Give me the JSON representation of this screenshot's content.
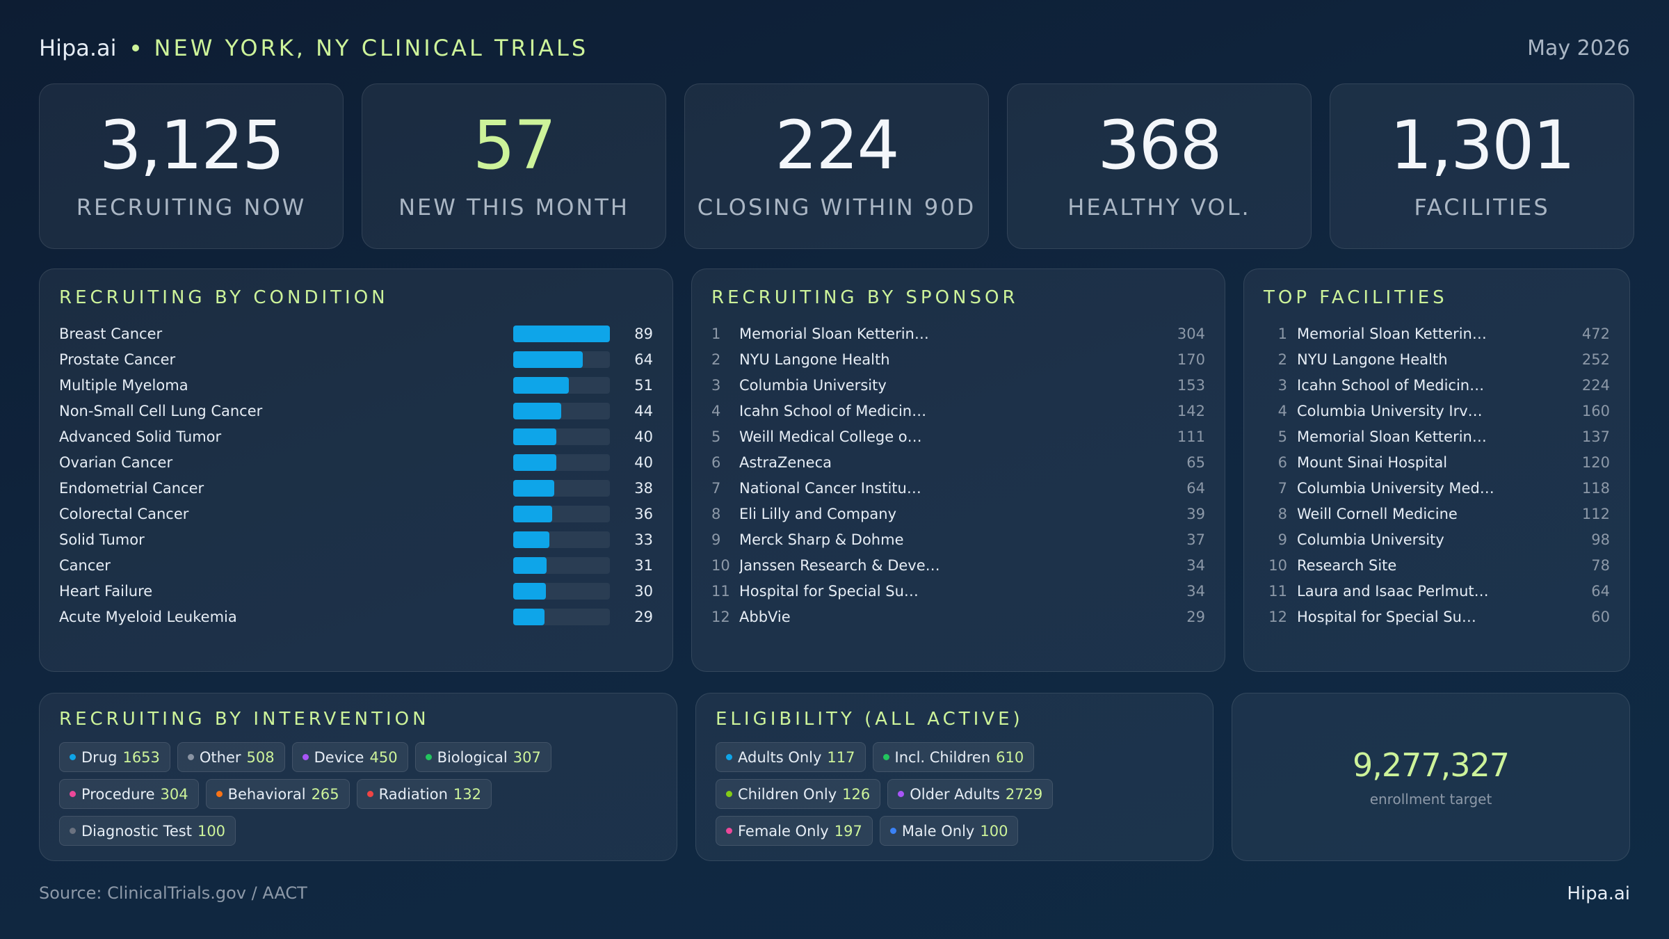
{
  "header": {
    "brand": "Hipa.ai",
    "title": "NEW YORK, NY CLINICAL TRIALS",
    "date": "May 2026"
  },
  "kpis": [
    {
      "value": "3,125",
      "label": "RECRUITING NOW"
    },
    {
      "value": "57",
      "label": "NEW THIS MONTH",
      "accent": true
    },
    {
      "value": "224",
      "label": "CLOSING WITHIN 90D"
    },
    {
      "value": "368",
      "label": "HEALTHY VOL."
    },
    {
      "value": "1,301",
      "label": "FACILITIES"
    }
  ],
  "conditions": {
    "title": "RECRUITING BY CONDITION",
    "bar_color": "#0ea5e9",
    "items": [
      {
        "name": "Breast Cancer",
        "value": 89
      },
      {
        "name": "Prostate Cancer",
        "value": 64
      },
      {
        "name": "Multiple Myeloma",
        "value": 51
      },
      {
        "name": "Non-Small Cell Lung Cancer",
        "value": 44
      },
      {
        "name": "Advanced Solid Tumor",
        "value": 40
      },
      {
        "name": "Ovarian Cancer",
        "value": 40
      },
      {
        "name": "Endometrial Cancer",
        "value": 38
      },
      {
        "name": "Colorectal Cancer",
        "value": 36
      },
      {
        "name": "Solid Tumor",
        "value": 33
      },
      {
        "name": "Cancer",
        "value": 31
      },
      {
        "name": "Heart Failure",
        "value": 30
      },
      {
        "name": "Acute Myeloid Leukemia",
        "value": 29
      }
    ]
  },
  "sponsors": {
    "title": "RECRUITING BY SPONSOR",
    "items": [
      {
        "rank": 1,
        "name": "Memorial Sloan Ketterin…",
        "count": 304
      },
      {
        "rank": 2,
        "name": "NYU Langone Health",
        "count": 170
      },
      {
        "rank": 3,
        "name": "Columbia University",
        "count": 153
      },
      {
        "rank": 4,
        "name": "Icahn School of Medicin…",
        "count": 142
      },
      {
        "rank": 5,
        "name": "Weill Medical College o…",
        "count": 111
      },
      {
        "rank": 6,
        "name": "AstraZeneca",
        "count": 65
      },
      {
        "rank": 7,
        "name": "National Cancer Institu…",
        "count": 64
      },
      {
        "rank": 8,
        "name": "Eli Lilly and Company",
        "count": 39
      },
      {
        "rank": 9,
        "name": "Merck Sharp & Dohme",
        "count": 37
      },
      {
        "rank": 10,
        "name": "Janssen Research & Deve…",
        "count": 34
      },
      {
        "rank": 11,
        "name": "Hospital for Special Su…",
        "count": 34
      },
      {
        "rank": 12,
        "name": "AbbVie",
        "count": 29
      }
    ]
  },
  "facilities": {
    "title": "TOP FACILITIES",
    "items": [
      {
        "rank": 1,
        "name": "Memorial Sloan Ketterin…",
        "count": 472
      },
      {
        "rank": 2,
        "name": "NYU Langone Health",
        "count": 252
      },
      {
        "rank": 3,
        "name": "Icahn School of Medicin…",
        "count": 224
      },
      {
        "rank": 4,
        "name": "Columbia University Irv…",
        "count": 160
      },
      {
        "rank": 5,
        "name": "Memorial Sloan Ketterin…",
        "count": 137
      },
      {
        "rank": 6,
        "name": "Mount Sinai Hospital",
        "count": 120
      },
      {
        "rank": 7,
        "name": "Columbia University Med…",
        "count": 118
      },
      {
        "rank": 8,
        "name": "Weill Cornell Medicine",
        "count": 112
      },
      {
        "rank": 9,
        "name": "Columbia University",
        "count": 98
      },
      {
        "rank": 10,
        "name": "Research Site",
        "count": 78
      },
      {
        "rank": 11,
        "name": "Laura and Isaac Perlmut…",
        "count": 64
      },
      {
        "rank": 12,
        "name": "Hospital for Special Su…",
        "count": 60
      }
    ]
  },
  "interventions": {
    "title": "RECRUITING BY INTERVENTION",
    "items": [
      {
        "label": "Drug",
        "count": 1653,
        "color": "#0ea5e9"
      },
      {
        "label": "Other",
        "count": 508,
        "color": "#8a94a3"
      },
      {
        "label": "Device",
        "count": 450,
        "color": "#a855f7"
      },
      {
        "label": "Biological",
        "count": 307,
        "color": "#22c55e"
      },
      {
        "label": "Procedure",
        "count": 304,
        "color": "#ec4899"
      },
      {
        "label": "Behavioral",
        "count": 265,
        "color": "#f97316"
      },
      {
        "label": "Radiation",
        "count": 132,
        "color": "#ef4444"
      },
      {
        "label": "Diagnostic Test",
        "count": 100,
        "color": "#6b7280"
      }
    ]
  },
  "eligibility": {
    "title": "ELIGIBILITY (ALL ACTIVE)",
    "items": [
      {
        "label": "Adults Only",
        "count": 117,
        "color": "#0ea5e9"
      },
      {
        "label": "Incl. Children",
        "count": 610,
        "color": "#22c55e"
      },
      {
        "label": "Children Only",
        "count": 126,
        "color": "#84cc16"
      },
      {
        "label": "Older Adults",
        "count": 2729,
        "color": "#a855f7"
      },
      {
        "label": "Female Only",
        "count": 197,
        "color": "#ec4899"
      },
      {
        "label": "Male Only",
        "count": 100,
        "color": "#3b82f6"
      }
    ]
  },
  "enrollment": {
    "value": "9,277,327",
    "label": "enrollment target"
  },
  "footer": {
    "source": "Source: ClinicalTrials.gov / AACT",
    "brand": "Hipa.ai"
  }
}
